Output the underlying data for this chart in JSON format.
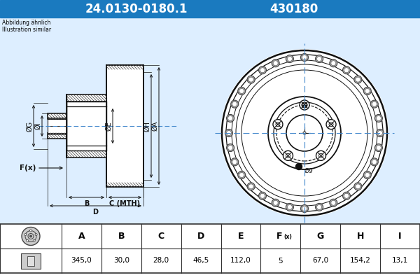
{
  "title_part": "24.0130-0180.1",
  "title_code": "430180",
  "header_bg": "#1a7abf",
  "header_text_color": "#ffffff",
  "subtitle": "Abbildung ähnlich\nIllustration similar",
  "table_headers": [
    "A",
    "B",
    "C",
    "D",
    "E",
    "F(x)",
    "G",
    "H",
    "I"
  ],
  "table_values": [
    "345,0",
    "30,0",
    "28,0",
    "46,5",
    "112,0",
    "5",
    "67,0",
    "154,2",
    "13,1"
  ],
  "bg_color": "#ffffff",
  "lc": "#111111",
  "note_label": "Ø9",
  "crosshair_color": "#4488cc"
}
